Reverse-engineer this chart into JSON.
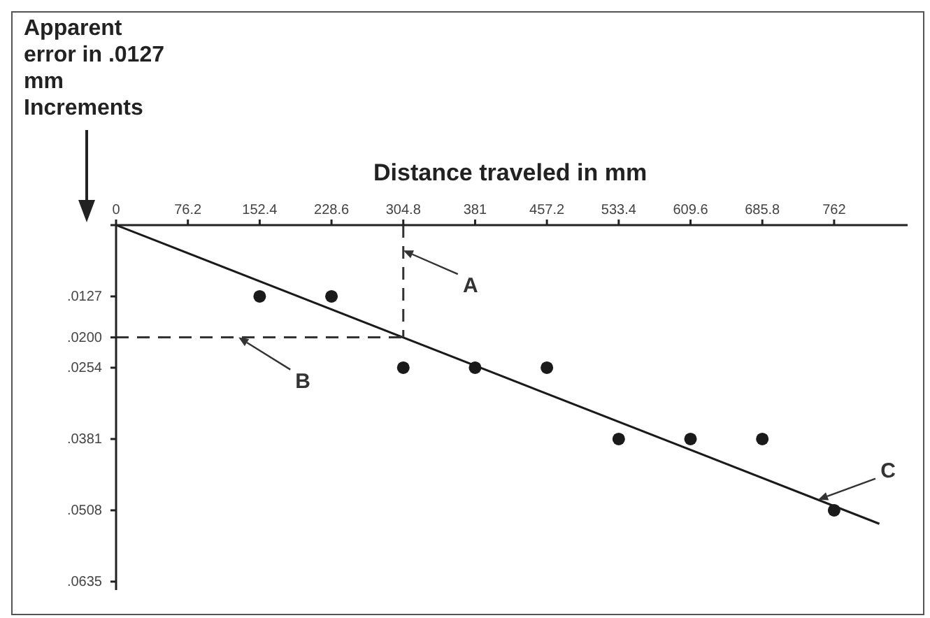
{
  "chart_data": {
    "type": "scatter",
    "xlabel": "Distance traveled in mm",
    "ylabel": "Apparent error in .0127 mm Increments",
    "xlim": [
      0,
      840
    ],
    "xticks": [
      0,
      76.2,
      152.4,
      228.6,
      304.8,
      381,
      457.2,
      533.4,
      609.6,
      685.8,
      762
    ],
    "ylim": [
      0.065,
      0
    ],
    "yticks": [
      {
        "value": 0,
        "label": null
      },
      {
        "value": 0.0127,
        "label": ".0127"
      },
      {
        "value": 0.02,
        "label": ".0200"
      },
      {
        "value": 0.0254,
        "label": ".0254"
      },
      {
        "value": 0.0381,
        "label": ".0381"
      },
      {
        "value": 0.0508,
        "label": ".0508"
      },
      {
        "value": 0.0635,
        "label": ".0635"
      }
    ],
    "series": [
      {
        "type": "scatter",
        "color": "#1a1a1a",
        "marker": "circle",
        "x": [
          152.4,
          228.6,
          304.8,
          381,
          457.2,
          533.4,
          609.6,
          685.8,
          762
        ],
        "values": [
          0.0127,
          0.0127,
          0.0254,
          0.0254,
          0.0254,
          0.0381,
          0.0381,
          0.0381,
          0.0508
        ]
      },
      {
        "type": "line",
        "color": "#1a1a1a",
        "marker": "none",
        "line_style": "solid",
        "x": [
          0,
          810
        ],
        "values": [
          0,
          0.0532
        ]
      },
      {
        "type": "line",
        "color": "#333333",
        "marker": "none",
        "line_style": "dashed",
        "x": [
          304.8,
          304.8
        ],
        "values": [
          0,
          0.02
        ]
      },
      {
        "type": "line",
        "color": "#333333",
        "marker": "none",
        "line_style": "dashed",
        "x": [
          0,
          304.8
        ],
        "values": [
          0.02,
          0.02
        ]
      }
    ],
    "annotations": [
      {
        "text": "A",
        "x": 304.8,
        "y": 0.0045
      },
      {
        "text": "B",
        "x": 130,
        "y": 0.02
      },
      {
        "text": "C",
        "x": 745,
        "y": 0.0489
      }
    ],
    "grid": false,
    "legend": false
  }
}
